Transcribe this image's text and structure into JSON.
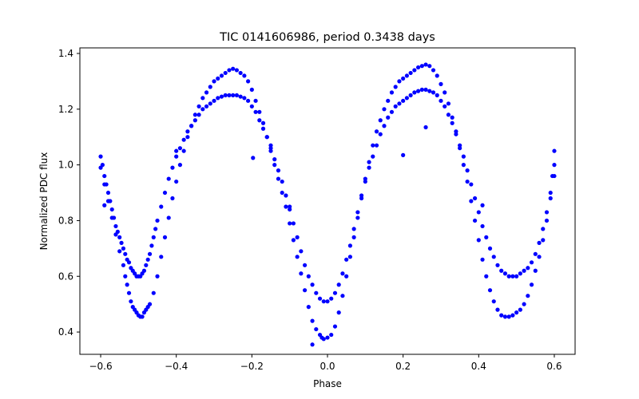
{
  "chart_data": {
    "type": "scatter",
    "title": "TIC 0141606986, period 0.3438 days",
    "xlabel": "Phase",
    "ylabel": "Normalized PDC flux",
    "xlim": [
      -0.655,
      0.655
    ],
    "ylim": [
      0.32,
      1.42
    ],
    "xticks": [
      -0.6,
      -0.4,
      -0.2,
      0.0,
      0.2,
      0.4,
      0.6
    ],
    "xtick_labels": [
      "−0.6",
      "−0.4",
      "−0.2",
      "0.0",
      "0.2",
      "0.4",
      "0.6"
    ],
    "yticks": [
      0.4,
      0.6,
      0.8,
      1.0,
      1.2,
      1.4
    ],
    "ytick_labels": [
      "0.4",
      "0.6",
      "0.8",
      "1.0",
      "1.2",
      "1.4"
    ],
    "grid": false,
    "marker_color": "#0000ff",
    "series": [
      {
        "values": [
          [
            -0.6,
            1.03
          ],
          [
            -0.595,
            1.0
          ],
          [
            -0.59,
            0.96
          ],
          [
            -0.585,
            0.93
          ],
          [
            -0.58,
            0.9
          ],
          [
            -0.575,
            0.87
          ],
          [
            -0.57,
            0.84
          ],
          [
            -0.565,
            0.81
          ],
          [
            -0.56,
            0.78
          ],
          [
            -0.555,
            0.76
          ],
          [
            -0.55,
            0.74
          ],
          [
            -0.545,
            0.72
          ],
          [
            -0.54,
            0.7
          ],
          [
            -0.535,
            0.68
          ],
          [
            -0.53,
            0.66
          ],
          [
            -0.525,
            0.65
          ],
          [
            -0.52,
            0.63
          ],
          [
            -0.515,
            0.62
          ],
          [
            -0.51,
            0.61
          ],
          [
            -0.505,
            0.6
          ],
          [
            -0.5,
            0.6
          ],
          [
            -0.495,
            0.6
          ],
          [
            -0.49,
            0.61
          ],
          [
            -0.485,
            0.62
          ],
          [
            -0.48,
            0.64
          ],
          [
            -0.475,
            0.66
          ],
          [
            -0.47,
            0.68
          ],
          [
            -0.465,
            0.71
          ],
          [
            -0.46,
            0.74
          ],
          [
            -0.455,
            0.77
          ],
          [
            -0.45,
            0.8
          ],
          [
            -0.44,
            0.85
          ],
          [
            -0.43,
            0.9
          ],
          [
            -0.42,
            0.95
          ],
          [
            -0.41,
            0.99
          ],
          [
            -0.4,
            1.03
          ],
          [
            -0.39,
            1.06
          ],
          [
            -0.38,
            1.09
          ],
          [
            -0.37,
            1.12
          ],
          [
            -0.36,
            1.14
          ],
          [
            -0.35,
            1.16
          ],
          [
            -0.34,
            1.18
          ],
          [
            -0.33,
            1.2
          ],
          [
            -0.32,
            1.21
          ],
          [
            -0.31,
            1.22
          ],
          [
            -0.3,
            1.23
          ],
          [
            -0.29,
            1.24
          ],
          [
            -0.28,
            1.245
          ],
          [
            -0.27,
            1.25
          ],
          [
            -0.26,
            1.25
          ],
          [
            -0.25,
            1.25
          ],
          [
            -0.24,
            1.25
          ],
          [
            -0.23,
            1.245
          ],
          [
            -0.22,
            1.24
          ],
          [
            -0.21,
            1.23
          ],
          [
            -0.2,
            1.21
          ],
          [
            -0.19,
            1.19
          ],
          [
            -0.18,
            1.16
          ],
          [
            -0.17,
            1.13
          ],
          [
            -0.16,
            1.1
          ],
          [
            -0.15,
            1.06
          ],
          [
            -0.14,
            1.02
          ],
          [
            -0.13,
            0.98
          ],
          [
            -0.12,
            0.94
          ],
          [
            -0.11,
            0.89
          ],
          [
            -0.1,
            0.84
          ],
          [
            -0.09,
            0.79
          ],
          [
            -0.08,
            0.74
          ],
          [
            -0.07,
            0.69
          ],
          [
            -0.06,
            0.64
          ],
          [
            -0.05,
            0.6
          ],
          [
            -0.04,
            0.57
          ],
          [
            -0.03,
            0.54
          ],
          [
            -0.02,
            0.52
          ],
          [
            -0.01,
            0.51
          ],
          [
            0.0,
            0.51
          ],
          [
            0.01,
            0.52
          ],
          [
            0.02,
            0.54
          ],
          [
            0.03,
            0.57
          ],
          [
            0.04,
            0.61
          ],
          [
            0.05,
            0.66
          ],
          [
            0.06,
            0.71
          ],
          [
            0.07,
            0.77
          ],
          [
            0.08,
            0.83
          ],
          [
            0.09,
            0.89
          ],
          [
            0.1,
            0.94
          ],
          [
            0.11,
            0.99
          ],
          [
            0.12,
            1.03
          ],
          [
            0.13,
            1.07
          ],
          [
            0.14,
            1.11
          ],
          [
            0.15,
            1.14
          ],
          [
            0.16,
            1.17
          ],
          [
            0.17,
            1.19
          ],
          [
            0.18,
            1.21
          ],
          [
            0.19,
            1.22
          ],
          [
            0.2,
            1.23
          ],
          [
            0.21,
            1.24
          ],
          [
            0.22,
            1.25
          ],
          [
            0.23,
            1.26
          ],
          [
            0.24,
            1.265
          ],
          [
            0.25,
            1.27
          ],
          [
            0.26,
            1.27
          ],
          [
            0.27,
            1.265
          ],
          [
            0.28,
            1.26
          ],
          [
            0.29,
            1.25
          ],
          [
            0.3,
            1.23
          ],
          [
            0.31,
            1.21
          ],
          [
            0.32,
            1.18
          ],
          [
            0.33,
            1.15
          ],
          [
            0.34,
            1.11
          ],
          [
            0.35,
            1.07
          ],
          [
            0.36,
            1.03
          ],
          [
            0.37,
            0.98
          ],
          [
            0.38,
            0.93
          ],
          [
            0.39,
            0.88
          ],
          [
            0.4,
            0.83
          ],
          [
            0.41,
            0.78
          ],
          [
            0.42,
            0.74
          ],
          [
            0.43,
            0.7
          ],
          [
            0.44,
            0.67
          ],
          [
            0.45,
            0.64
          ],
          [
            0.46,
            0.62
          ],
          [
            0.47,
            0.61
          ],
          [
            0.48,
            0.6
          ],
          [
            0.49,
            0.6
          ],
          [
            0.5,
            0.6
          ],
          [
            0.51,
            0.61
          ],
          [
            0.52,
            0.62
          ],
          [
            0.53,
            0.63
          ],
          [
            0.54,
            0.65
          ],
          [
            0.55,
            0.68
          ],
          [
            0.56,
            0.72
          ],
          [
            0.57,
            0.77
          ],
          [
            0.58,
            0.83
          ],
          [
            0.59,
            0.9
          ],
          [
            0.595,
            0.96
          ],
          [
            0.6,
            1.0
          ],
          [
            -0.6,
            0.99
          ],
          [
            -0.59,
            0.93
          ],
          [
            -0.58,
            0.87
          ],
          [
            -0.57,
            0.81
          ],
          [
            -0.56,
            0.75
          ],
          [
            -0.55,
            0.69
          ],
          [
            -0.54,
            0.64
          ],
          [
            -0.535,
            0.6
          ],
          [
            -0.53,
            0.57
          ],
          [
            -0.525,
            0.54
          ],
          [
            -0.52,
            0.51
          ],
          [
            -0.515,
            0.49
          ],
          [
            -0.51,
            0.48
          ],
          [
            -0.505,
            0.47
          ],
          [
            -0.5,
            0.46
          ],
          [
            -0.495,
            0.455
          ],
          [
            -0.49,
            0.455
          ],
          [
            -0.485,
            0.47
          ],
          [
            -0.48,
            0.48
          ],
          [
            -0.475,
            0.49
          ],
          [
            -0.47,
            0.5
          ],
          [
            -0.46,
            0.54
          ],
          [
            -0.45,
            0.6
          ],
          [
            -0.44,
            0.67
          ],
          [
            -0.43,
            0.74
          ],
          [
            -0.42,
            0.81
          ],
          [
            -0.41,
            0.88
          ],
          [
            -0.4,
            0.94
          ],
          [
            -0.39,
            1.0
          ],
          [
            -0.38,
            1.05
          ],
          [
            -0.37,
            1.1
          ],
          [
            -0.36,
            1.14
          ],
          [
            -0.35,
            1.18
          ],
          [
            -0.34,
            1.21
          ],
          [
            -0.33,
            1.24
          ],
          [
            -0.32,
            1.26
          ],
          [
            -0.31,
            1.28
          ],
          [
            -0.3,
            1.3
          ],
          [
            -0.29,
            1.31
          ],
          [
            -0.28,
            1.32
          ],
          [
            -0.27,
            1.33
          ],
          [
            -0.26,
            1.34
          ],
          [
            -0.25,
            1.345
          ],
          [
            -0.24,
            1.34
          ],
          [
            -0.23,
            1.33
          ],
          [
            -0.22,
            1.32
          ],
          [
            -0.21,
            1.3
          ],
          [
            -0.2,
            1.27
          ],
          [
            -0.19,
            1.23
          ],
          [
            -0.18,
            1.19
          ],
          [
            -0.17,
            1.15
          ],
          [
            -0.16,
            1.1
          ],
          [
            -0.15,
            1.05
          ],
          [
            -0.14,
            1.0
          ],
          [
            -0.13,
            0.95
          ],
          [
            -0.12,
            0.9
          ],
          [
            -0.11,
            0.85
          ],
          [
            -0.1,
            0.79
          ],
          [
            -0.09,
            0.73
          ],
          [
            -0.08,
            0.67
          ],
          [
            -0.07,
            0.61
          ],
          [
            -0.06,
            0.55
          ],
          [
            -0.05,
            0.49
          ],
          [
            -0.04,
            0.44
          ],
          [
            -0.03,
            0.41
          ],
          [
            -0.02,
            0.39
          ],
          [
            -0.015,
            0.38
          ],
          [
            -0.01,
            0.375
          ],
          [
            0.0,
            0.38
          ],
          [
            0.01,
            0.39
          ],
          [
            0.02,
            0.42
          ],
          [
            0.03,
            0.47
          ],
          [
            0.04,
            0.53
          ],
          [
            0.05,
            0.6
          ],
          [
            0.06,
            0.67
          ],
          [
            0.07,
            0.74
          ],
          [
            0.08,
            0.81
          ],
          [
            0.09,
            0.88
          ],
          [
            0.1,
            0.95
          ],
          [
            0.11,
            1.01
          ],
          [
            0.12,
            1.07
          ],
          [
            0.13,
            1.12
          ],
          [
            0.14,
            1.16
          ],
          [
            0.15,
            1.2
          ],
          [
            0.16,
            1.23
          ],
          [
            0.17,
            1.26
          ],
          [
            0.18,
            1.28
          ],
          [
            0.19,
            1.3
          ],
          [
            0.2,
            1.31
          ],
          [
            0.21,
            1.32
          ],
          [
            0.22,
            1.33
          ],
          [
            0.23,
            1.34
          ],
          [
            0.24,
            1.35
          ],
          [
            0.25,
            1.355
          ],
          [
            0.26,
            1.36
          ],
          [
            0.27,
            1.355
          ],
          [
            0.28,
            1.34
          ],
          [
            0.29,
            1.32
          ],
          [
            0.3,
            1.29
          ],
          [
            0.31,
            1.26
          ],
          [
            0.32,
            1.22
          ],
          [
            0.33,
            1.17
          ],
          [
            0.34,
            1.12
          ],
          [
            0.35,
            1.06
          ],
          [
            0.36,
            1.0
          ],
          [
            0.37,
            0.94
          ],
          [
            0.38,
            0.87
          ],
          [
            0.39,
            0.8
          ],
          [
            0.4,
            0.73
          ],
          [
            0.41,
            0.66
          ],
          [
            0.42,
            0.6
          ],
          [
            0.43,
            0.55
          ],
          [
            0.44,
            0.51
          ],
          [
            0.45,
            0.48
          ],
          [
            0.46,
            0.46
          ],
          [
            0.47,
            0.455
          ],
          [
            0.48,
            0.455
          ],
          [
            0.49,
            0.46
          ],
          [
            0.5,
            0.47
          ],
          [
            0.51,
            0.48
          ],
          [
            0.52,
            0.5
          ],
          [
            0.53,
            0.53
          ],
          [
            0.54,
            0.57
          ],
          [
            0.55,
            0.62
          ],
          [
            0.56,
            0.67
          ],
          [
            0.57,
            0.73
          ],
          [
            0.58,
            0.8
          ],
          [
            0.59,
            0.88
          ],
          [
            0.6,
            0.96
          ],
          [
            -0.59,
            0.855
          ],
          [
            -0.4,
            1.05
          ],
          [
            -0.197,
            1.025
          ],
          [
            -0.15,
            1.07
          ],
          [
            -0.1,
            0.85
          ],
          [
            -0.04,
            0.355
          ],
          [
            0.2,
            1.035
          ],
          [
            0.26,
            1.135
          ],
          [
            0.41,
            0.855
          ],
          [
            0.6,
            1.05
          ]
        ]
      }
    ]
  }
}
